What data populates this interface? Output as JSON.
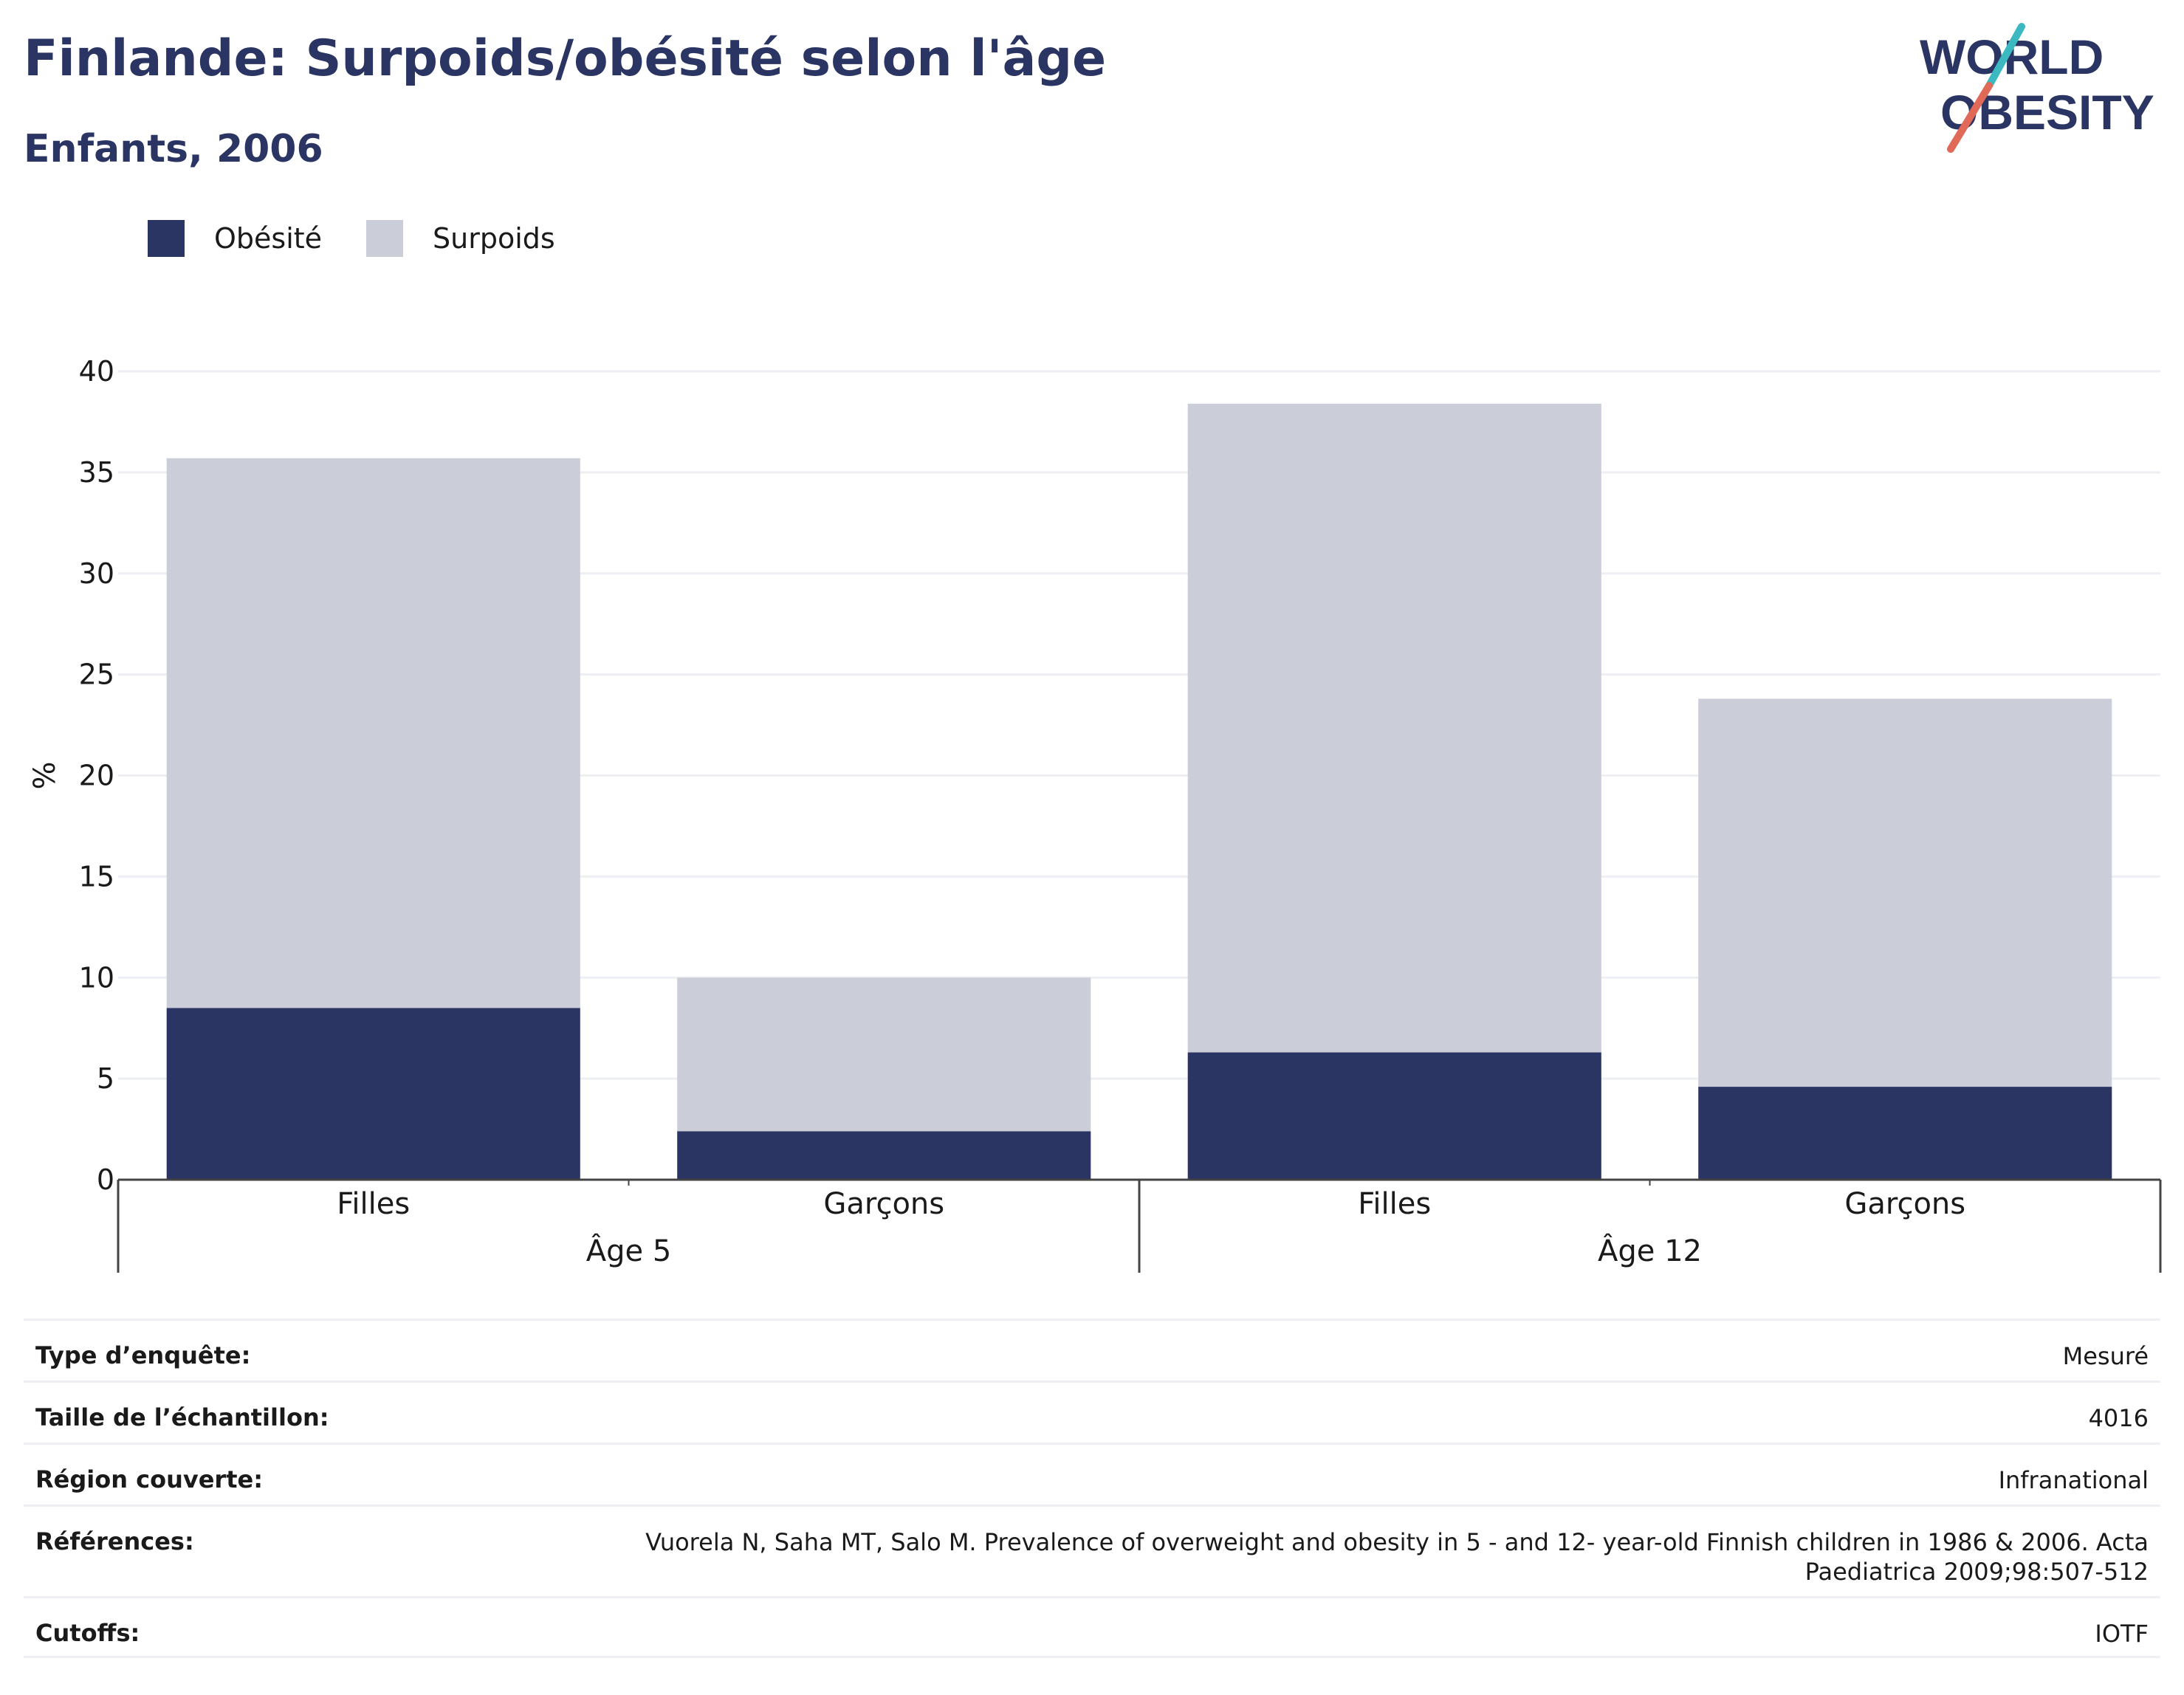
{
  "header": {
    "title": "Finlande: Surpoids/obésité selon l'âge",
    "subtitle": "Enfants, 2006"
  },
  "logo": {
    "line1": "WORLD",
    "line2": "OBESITY",
    "icon": "world-obesity-logo"
  },
  "colors": {
    "obesity": "#2a3563",
    "overweight": "#cbcdd8",
    "title": "#2a3563",
    "grid": "#eeeff3",
    "axis": "#444444"
  },
  "chart_data": {
    "type": "bar",
    "stacked": true,
    "groups": [
      {
        "label": "Âge 5",
        "categories": [
          "Filles",
          "Garçons"
        ]
      },
      {
        "label": "Âge 12",
        "categories": [
          "Filles",
          "Garçons"
        ]
      }
    ],
    "series": [
      {
        "name": "Obésité",
        "values": [
          8.5,
          2.4,
          6.3,
          4.6
        ]
      },
      {
        "name": "Surpoids",
        "values": [
          27.2,
          7.6,
          32.1,
          19.2
        ]
      }
    ],
    "ylabel": "%",
    "ylim": [
      0,
      40
    ],
    "yticks": [
      0,
      5,
      10,
      15,
      20,
      25,
      30,
      35,
      40
    ],
    "grid": true,
    "legend_position": "top-left"
  },
  "info": [
    {
      "key": "Type d’enquête:",
      "value": "Mesuré"
    },
    {
      "key": "Taille de l’échantillon:",
      "value": "4016"
    },
    {
      "key": "Région couverte:",
      "value": "Infranational"
    },
    {
      "key": "Références:",
      "value": "Vuorela N, Saha MT, Salo M. Prevalence of overweight and obesity in 5 - and 12- year-old Finnish children in 1986 & 2006. Acta Paediatrica 2009;98:507-512"
    },
    {
      "key": "Cutoffs:",
      "value": "IOTF"
    }
  ]
}
